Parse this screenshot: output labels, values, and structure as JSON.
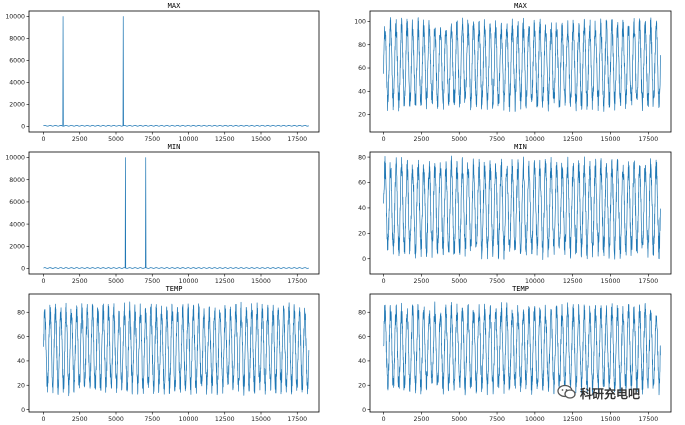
{
  "watermark": {
    "text": "科研充电吧",
    "icon": "wechat-logo-icon"
  },
  "chart_data": [
    {
      "type": "line",
      "title": "MAX",
      "color": "#1f77b4",
      "xlim": [
        -1000,
        19000
      ],
      "ylim": [
        -500,
        10500
      ],
      "xticks": [
        0,
        2500,
        5000,
        7500,
        10000,
        12500,
        15000,
        17500
      ],
      "yticks": [
        0,
        2000,
        4000,
        6000,
        8000,
        10000
      ],
      "baseline": 65,
      "amplitude": 40,
      "cycles": 50,
      "n_points": 18300,
      "spikes": [
        {
          "x": 1350,
          "y": 9999
        },
        {
          "x": 5500,
          "y": 9999
        }
      ]
    },
    {
      "type": "line",
      "title": "MAX",
      "color": "#1f77b4",
      "xlim": [
        -900,
        19000
      ],
      "ylim": [
        5,
        109
      ],
      "xticks": [
        0,
        2500,
        5000,
        7500,
        10000,
        12500,
        15000,
        17500
      ],
      "yticks": [
        20,
        40,
        60,
        80,
        100
      ],
      "baseline": 63,
      "amplitude": 38,
      "cycles": 50,
      "n_points": 18300,
      "spikes": []
    },
    {
      "type": "line",
      "title": "MIN",
      "color": "#1f77b4",
      "xlim": [
        -1000,
        19000
      ],
      "ylim": [
        -500,
        10500
      ],
      "xticks": [
        0,
        2500,
        5000,
        7500,
        10000,
        12500,
        15000,
        17500
      ],
      "yticks": [
        0,
        2000,
        4000,
        6000,
        8000,
        10000
      ],
      "baseline": 40,
      "amplitude": 38,
      "cycles": 50,
      "n_points": 18300,
      "spikes": [
        {
          "x": 5650,
          "y": 9999
        },
        {
          "x": 7050,
          "y": 9999
        }
      ]
    },
    {
      "type": "line",
      "title": "MIN",
      "color": "#1f77b4",
      "xlim": [
        -900,
        19000
      ],
      "ylim": [
        -12,
        84
      ],
      "xticks": [
        0,
        2500,
        5000,
        7500,
        10000,
        12500,
        15000,
        17500
      ],
      "yticks": [
        0,
        20,
        40,
        60,
        80
      ],
      "baseline": 40,
      "amplitude": 38,
      "cycles": 50,
      "n_points": 18300,
      "spikes": []
    },
    {
      "type": "line",
      "title": "TEMP",
      "color": "#1f77b4",
      "xlim": [
        -1000,
        19000
      ],
      "ylim": [
        -2,
        95
      ],
      "xticks": [
        0,
        2500,
        5000,
        7500,
        10000,
        12500,
        15000,
        17500
      ],
      "yticks": [
        0,
        20,
        40,
        60,
        80
      ],
      "baseline": 50,
      "amplitude": 36,
      "cycles": 50,
      "n_points": 18300,
      "spikes": []
    },
    {
      "type": "line",
      "title": "TEMP",
      "color": "#1f77b4",
      "xlim": [
        -900,
        19000
      ],
      "ylim": [
        -2,
        95
      ],
      "xticks": [
        0,
        2500,
        5000,
        7500,
        10000,
        12500,
        15000,
        17500
      ],
      "yticks": [
        0,
        20,
        40,
        60,
        80
      ],
      "baseline": 50,
      "amplitude": 36,
      "cycles": 50,
      "n_points": 18300,
      "spikes": []
    }
  ]
}
